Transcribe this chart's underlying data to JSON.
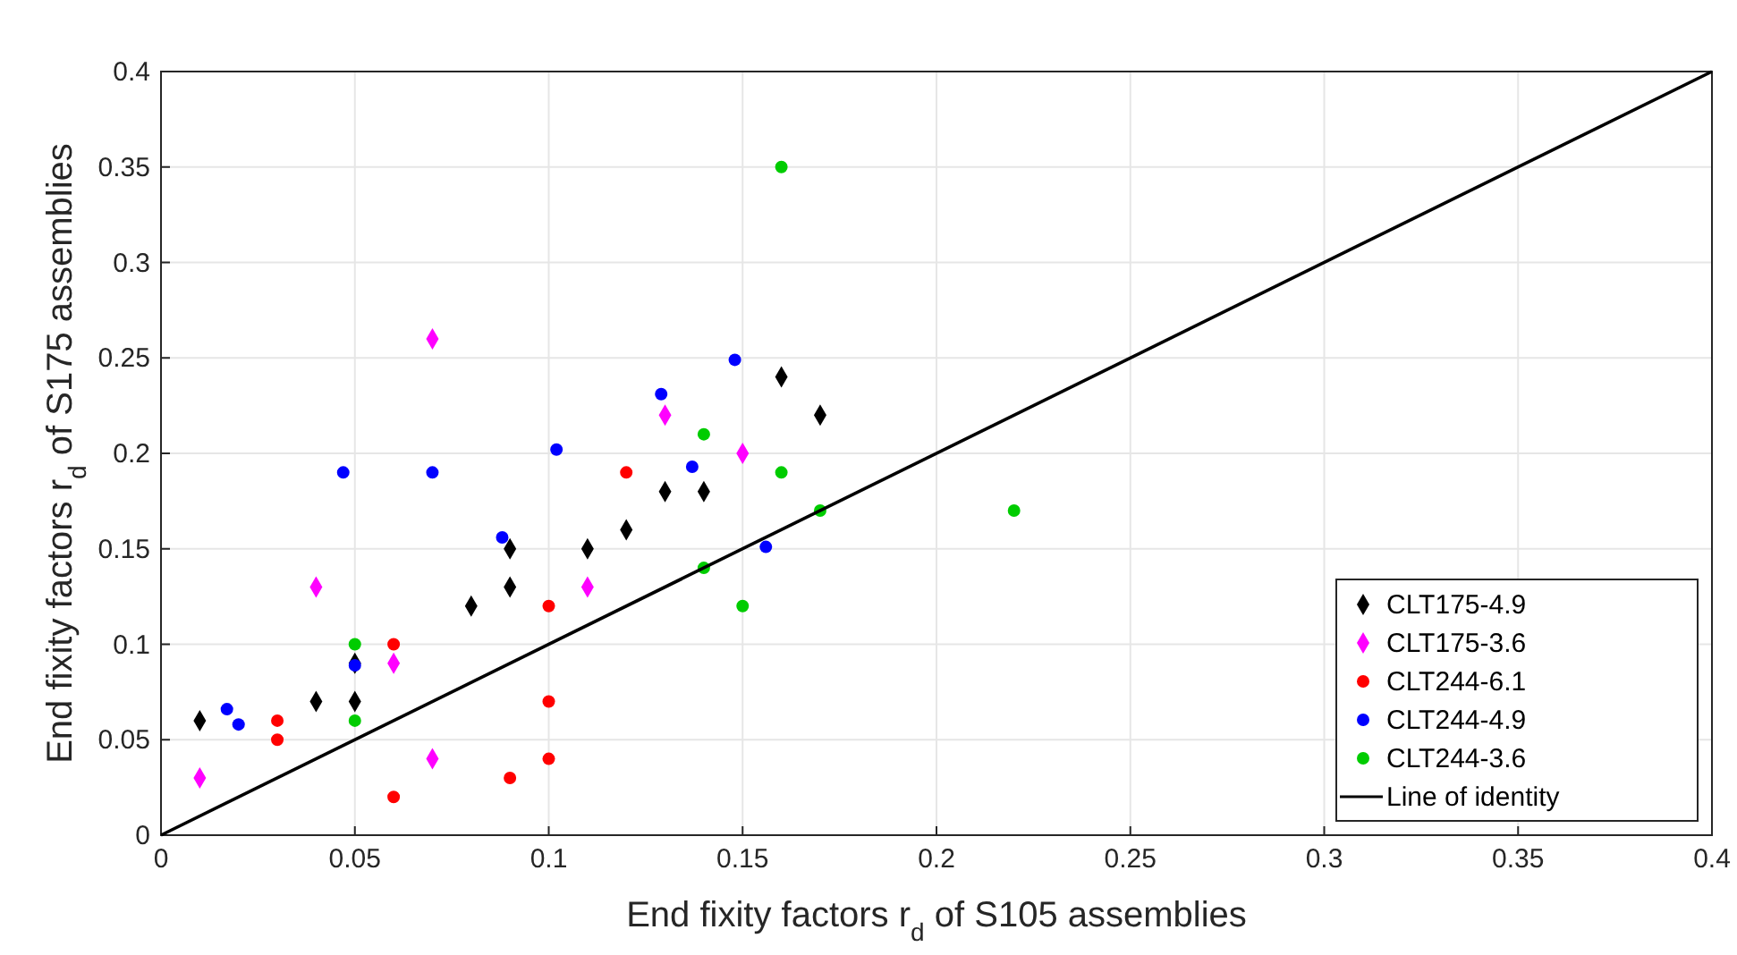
{
  "chart_data": {
    "type": "scatter",
    "xlabel": "End fixity factors r$_{d}$ of S105 assemblies",
    "ylabel": "End fixity factors r$_{d}$ of S175 assemblies",
    "xlim": [
      0,
      0.4
    ],
    "ylim": [
      0,
      0.4
    ],
    "xticks": [
      0,
      0.05,
      0.1,
      0.15,
      0.2,
      0.25,
      0.3,
      0.35,
      0.4
    ],
    "yticks": [
      0,
      0.05,
      0.1,
      0.15,
      0.2,
      0.25,
      0.3,
      0.35,
      0.4
    ],
    "grid": true,
    "legend": "bottom right",
    "series": [
      {
        "name": "CLT175-4.9",
        "color": "#000000",
        "marker": "diamond",
        "x": [
          0.01,
          0.04,
          0.05,
          0.05,
          0.08,
          0.09,
          0.09,
          0.11,
          0.12,
          0.13,
          0.14,
          0.16,
          0.17
        ],
        "values": [
          0.06,
          0.07,
          0.07,
          0.09,
          0.12,
          0.13,
          0.15,
          0.15,
          0.16,
          0.18,
          0.18,
          0.24,
          0.22
        ]
      },
      {
        "name": "CLT175-3.6",
        "color": "#ff00ff",
        "marker": "diamond",
        "x": [
          0.01,
          0.04,
          0.06,
          0.07,
          0.07,
          0.11,
          0.13,
          0.15
        ],
        "values": [
          0.03,
          0.13,
          0.09,
          0.26,
          0.04,
          0.13,
          0.22,
          0.2
        ]
      },
      {
        "name": "CLT244-6.1",
        "color": "#ff0000",
        "marker": "circle",
        "x": [
          0.03,
          0.03,
          0.06,
          0.06,
          0.09,
          0.1,
          0.1,
          0.1,
          0.12
        ],
        "values": [
          0.06,
          0.05,
          0.1,
          0.02,
          0.03,
          0.12,
          0.07,
          0.04,
          0.19
        ]
      },
      {
        "name": "CLT244-4.9",
        "color": "#0000ff",
        "marker": "circle",
        "x": [
          0.017,
          0.02,
          0.047,
          0.05,
          0.07,
          0.088,
          0.102,
          0.129,
          0.137,
          0.148,
          0.156
        ],
        "values": [
          0.066,
          0.058,
          0.19,
          0.089,
          0.19,
          0.156,
          0.202,
          0.231,
          0.193,
          0.249,
          0.151
        ]
      },
      {
        "name": "CLT244-3.6",
        "color": "#00cc00",
        "marker": "circle",
        "x": [
          0.05,
          0.05,
          0.14,
          0.14,
          0.15,
          0.16,
          0.16,
          0.17,
          0.22
        ],
        "values": [
          0.1,
          0.06,
          0.21,
          0.14,
          0.12,
          0.35,
          0.19,
          0.17,
          0.17
        ]
      },
      {
        "name": "Line of identity",
        "type": "line",
        "color": "#000000",
        "marker": "none",
        "line_style": "solid",
        "x": [
          0,
          0.4
        ],
        "values": [
          0,
          0.4
        ]
      }
    ]
  }
}
